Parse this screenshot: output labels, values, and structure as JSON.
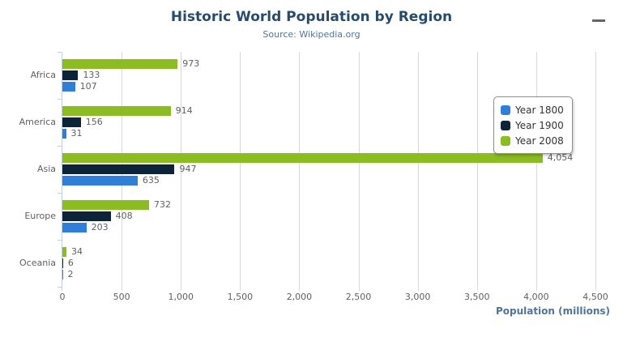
{
  "header": {
    "title": "Historic World Population by Region",
    "subtitle": "Source: Wikipedia.org"
  },
  "context_menu_icon": "hamburger-menu-icon",
  "chart_data": {
    "type": "bar",
    "orientation": "horizontal",
    "title": "Historic World Population by Region",
    "subtitle": "Source: Wikipedia.org",
    "categories": [
      "Africa",
      "America",
      "Asia",
      "Europe",
      "Oceania"
    ],
    "series": [
      {
        "name": "Year 1800",
        "color": "#2f7ed8",
        "values": [
          107,
          31,
          635,
          203,
          2
        ]
      },
      {
        "name": "Year 1900",
        "color": "#0d233a",
        "values": [
          133,
          156,
          947,
          408,
          6
        ]
      },
      {
        "name": "Year 2008",
        "color": "#8bbc21",
        "values": [
          973,
          914,
          4054,
          732,
          34
        ]
      }
    ],
    "series_display_order_top_to_bottom": [
      "Year 2008",
      "Year 1900",
      "Year 1800"
    ],
    "data_labels": true,
    "xlabel": "Population (millions)",
    "ylabel": "",
    "xlim": [
      0,
      4500
    ],
    "x_ticks": [
      0,
      500,
      1000,
      1500,
      2000,
      2500,
      3000,
      3500,
      4000,
      4500
    ],
    "grid": true,
    "legend_position": "right"
  },
  "colors": {
    "title": "#274b6d",
    "subtitle": "#4d759e",
    "axis_title": "#4d759e",
    "labels": "#606060",
    "gridline": "#d8d8d8",
    "axis_line": "#c0d0e0",
    "legend_border": "#909090",
    "legend_text": "#333333",
    "menu_icon": "#666666"
  }
}
